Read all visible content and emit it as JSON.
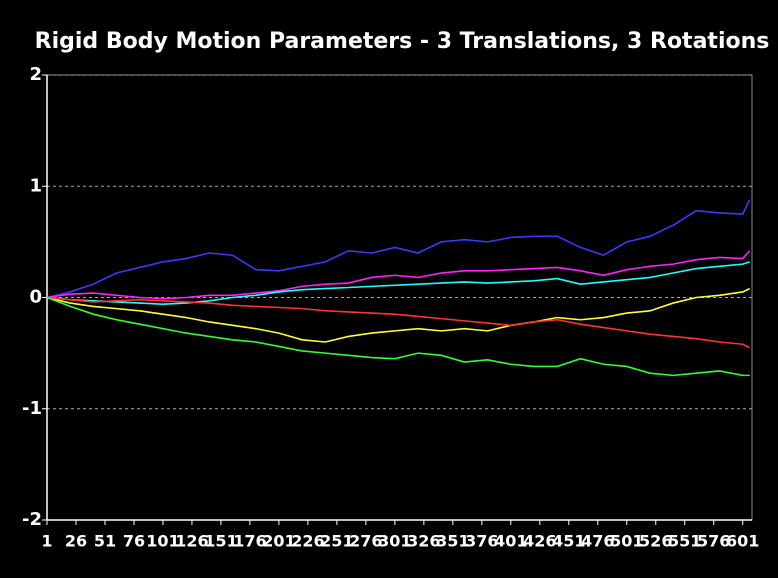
{
  "chart_data": {
    "type": "line",
    "title": "Rigid Body Motion Parameters - 3 Translations, 3 Rotations",
    "x": [
      1,
      21,
      41,
      61,
      81,
      101,
      121,
      141,
      161,
      181,
      201,
      221,
      241,
      261,
      281,
      301,
      321,
      341,
      361,
      381,
      401,
      421,
      441,
      461,
      481,
      501,
      521,
      541,
      561,
      581,
      601,
      607
    ],
    "series": [
      {
        "color": "#3a3aff",
        "values": [
          0,
          0.05,
          0.12,
          0.22,
          0.27,
          0.32,
          0.35,
          0.4,
          0.38,
          0.25,
          0.24,
          0.28,
          0.32,
          0.42,
          0.4,
          0.45,
          0.4,
          0.5,
          0.52,
          0.5,
          0.54,
          0.55,
          0.55,
          0.45,
          0.38,
          0.5,
          0.55,
          0.65,
          0.78,
          0.76,
          0.75,
          0.88
        ]
      },
      {
        "color": "#ff22ff",
        "values": [
          0,
          0.03,
          0.04,
          0.02,
          0,
          -0.01,
          0,
          0.02,
          0.02,
          0.04,
          0.06,
          0.1,
          0.12,
          0.13,
          0.18,
          0.2,
          0.18,
          0.22,
          0.24,
          0.24,
          0.25,
          0.26,
          0.27,
          0.24,
          0.2,
          0.25,
          0.28,
          0.3,
          0.34,
          0.36,
          0.35,
          0.42
        ]
      },
      {
        "color": "#22ffff",
        "values": [
          0,
          -0.02,
          -0.03,
          -0.04,
          -0.05,
          -0.06,
          -0.05,
          -0.03,
          0,
          0.02,
          0.05,
          0.07,
          0.08,
          0.09,
          0.1,
          0.11,
          0.12,
          0.13,
          0.14,
          0.13,
          0.14,
          0.15,
          0.17,
          0.12,
          0.14,
          0.16,
          0.18,
          0.22,
          0.26,
          0.28,
          0.3,
          0.32
        ]
      },
      {
        "color": "#ffff33",
        "values": [
          0,
          -0.05,
          -0.08,
          -0.1,
          -0.12,
          -0.15,
          -0.18,
          -0.22,
          -0.25,
          -0.28,
          -0.32,
          -0.38,
          -0.4,
          -0.35,
          -0.32,
          -0.3,
          -0.28,
          -0.3,
          -0.28,
          -0.3,
          -0.25,
          -0.22,
          -0.18,
          -0.2,
          -0.18,
          -0.14,
          -0.12,
          -0.05,
          0,
          0.02,
          0.05,
          0.08
        ]
      },
      {
        "color": "#ff3333",
        "values": [
          0,
          -0.02,
          -0.04,
          -0.03,
          -0.02,
          -0.03,
          -0.04,
          -0.05,
          -0.07,
          -0.08,
          -0.09,
          -0.1,
          -0.12,
          -0.13,
          -0.14,
          -0.15,
          -0.17,
          -0.19,
          -0.21,
          -0.23,
          -0.25,
          -0.22,
          -0.2,
          -0.24,
          -0.27,
          -0.3,
          -0.33,
          -0.35,
          -0.37,
          -0.4,
          -0.42,
          -0.45
        ]
      },
      {
        "color": "#33ff33",
        "values": [
          0,
          -0.08,
          -0.15,
          -0.2,
          -0.24,
          -0.28,
          -0.32,
          -0.35,
          -0.38,
          -0.4,
          -0.44,
          -0.48,
          -0.5,
          -0.52,
          -0.54,
          -0.55,
          -0.5,
          -0.52,
          -0.58,
          -0.56,
          -0.6,
          -0.62,
          -0.62,
          -0.55,
          -0.6,
          -0.62,
          -0.68,
          -0.7,
          -0.68,
          -0.66,
          -0.7,
          -0.7
        ]
      }
    ],
    "xlim": [
      1,
      609
    ],
    "xticks": [
      1,
      26,
      51,
      76,
      101,
      126,
      151,
      176,
      201,
      226,
      251,
      276,
      301,
      326,
      351,
      376,
      401,
      426,
      451,
      476,
      501,
      526,
      551,
      576,
      601
    ],
    "ylim": [
      -2,
      2
    ],
    "yticks": [
      -2,
      -1,
      0,
      1,
      2
    ],
    "grid": true
  }
}
